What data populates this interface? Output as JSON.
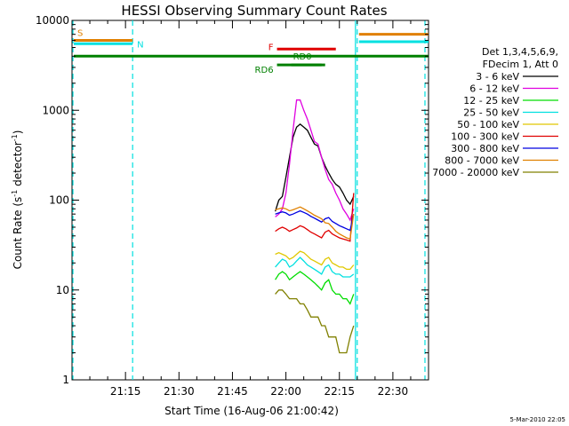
{
  "chart_data": {
    "type": "line",
    "title": "HESSI Observing Summary Count Rates",
    "xlabel": "Start Time (16-Aug-06 21:00:42)",
    "ylabel_main": "Count Rate (s",
    "ylabel_sup1": "-1",
    "ylabel_mid": " detector",
    "ylabel_sup2": "-1",
    "ylabel_end": ")",
    "yscale": "log",
    "ylim": [
      1,
      10000
    ],
    "xlim_minutes": [
      0,
      100
    ],
    "y_ticks": [
      {
        "value": 10000,
        "label": "10000"
      },
      {
        "value": 1000,
        "label": "1000"
      },
      {
        "value": 100,
        "label": "100"
      },
      {
        "value": 10,
        "label": "10"
      },
      {
        "value": 1,
        "label": "1"
      }
    ],
    "x_ticks": [
      {
        "minute": 15,
        "label": "21:15"
      },
      {
        "minute": 30,
        "label": "21:30"
      },
      {
        "minute": 45,
        "label": "21:45"
      },
      {
        "minute": 60,
        "label": "22:00"
      },
      {
        "minute": 75,
        "label": "22:15"
      },
      {
        "minute": 90,
        "label": "22:30"
      }
    ],
    "legend_header": [
      "Det 1,3,4,5,6,9,",
      "FDecim 1, Att 0"
    ],
    "legend_placement": "right",
    "series": [
      {
        "name": "3 - 6 keV",
        "color": "#000000",
        "x": [
          57,
          58,
          59,
          60,
          61,
          62,
          63,
          64,
          65,
          66,
          67,
          68,
          69,
          70,
          71,
          72,
          73,
          74,
          75,
          76,
          77,
          78,
          79
        ],
        "y": [
          75,
          100,
          110,
          180,
          300,
          500,
          650,
          700,
          650,
          600,
          500,
          420,
          400,
          300,
          240,
          200,
          170,
          150,
          140,
          120,
          100,
          90,
          110
        ]
      },
      {
        "name": "6 - 12 keV",
        "color": "#e000e0",
        "x": [
          57,
          58,
          59,
          60,
          61,
          62,
          63,
          64,
          65,
          66,
          67,
          68,
          69,
          70,
          71,
          72,
          73,
          74,
          75,
          76,
          77,
          78,
          79
        ],
        "y": [
          65,
          70,
          80,
          120,
          250,
          600,
          1300,
          1300,
          1000,
          800,
          600,
          450,
          420,
          300,
          220,
          170,
          150,
          120,
          100,
          80,
          70,
          60,
          80
        ]
      },
      {
        "name": "12 - 25 keV",
        "color": "#00dd00",
        "x": [
          57,
          58,
          59,
          60,
          61,
          62,
          63,
          64,
          65,
          66,
          67,
          68,
          69,
          70,
          71,
          72,
          73,
          74,
          75,
          76,
          77,
          78,
          79
        ],
        "y": [
          13,
          15,
          16,
          15,
          13,
          14,
          15,
          16,
          15,
          14,
          13,
          12,
          11,
          10,
          12,
          13,
          10,
          9,
          9,
          8,
          8,
          7,
          9
        ]
      },
      {
        "name": "25 - 50 keV",
        "color": "#00e0e0",
        "x": [
          57,
          58,
          59,
          60,
          61,
          62,
          63,
          64,
          65,
          66,
          67,
          68,
          69,
          70,
          71,
          72,
          73,
          74,
          75,
          76,
          77,
          78,
          79
        ],
        "y": [
          18,
          20,
          22,
          21,
          18,
          19,
          21,
          23,
          21,
          19,
          18,
          17,
          16,
          15,
          18,
          19,
          16,
          15,
          15,
          14,
          14,
          14,
          15
        ]
      },
      {
        "name": "50 - 100 keV",
        "color": "#e0c800",
        "x": [
          57,
          58,
          59,
          60,
          61,
          62,
          63,
          64,
          65,
          66,
          67,
          68,
          69,
          70,
          71,
          72,
          73,
          74,
          75,
          76,
          77,
          78,
          79
        ],
        "y": [
          25,
          26,
          25,
          24,
          22,
          23,
          25,
          27,
          26,
          24,
          22,
          21,
          20,
          19,
          22,
          23,
          20,
          19,
          18,
          18,
          17,
          17,
          19
        ]
      },
      {
        "name": "100 - 300 keV",
        "color": "#e00000",
        "x": [
          57,
          58,
          59,
          60,
          61,
          62,
          63,
          64,
          65,
          66,
          67,
          68,
          69,
          70,
          71,
          72,
          73,
          74,
          75,
          76,
          77,
          78,
          79
        ],
        "y": [
          45,
          48,
          50,
          48,
          45,
          47,
          49,
          52,
          50,
          47,
          44,
          42,
          40,
          38,
          44,
          46,
          42,
          40,
          38,
          37,
          36,
          35,
          120
        ]
      },
      {
        "name": "300 - 800 keV",
        "color": "#0000e0",
        "x": [
          57,
          58,
          59,
          60,
          61,
          62,
          63,
          64,
          65,
          66,
          67,
          68,
          69,
          70,
          71,
          72,
          73,
          74,
          75,
          76,
          77,
          78,
          79
        ],
        "y": [
          70,
          72,
          74,
          72,
          68,
          70,
          73,
          76,
          73,
          70,
          66,
          63,
          60,
          57,
          62,
          64,
          58,
          55,
          52,
          50,
          48,
          46,
          70
        ]
      },
      {
        "name": "800 - 7000 keV",
        "color": "#e08000",
        "x": [
          57,
          58,
          59,
          60,
          61,
          62,
          63,
          64,
          65,
          66,
          67,
          68,
          69,
          70,
          71,
          72,
          73,
          74,
          75,
          76,
          77,
          78,
          79
        ],
        "y": [
          78,
          80,
          82,
          80,
          76,
          78,
          81,
          84,
          80,
          76,
          72,
          68,
          65,
          62,
          56,
          55,
          50,
          45,
          42,
          40,
          38,
          37,
          70
        ]
      },
      {
        "name": "7000 - 20000 keV",
        "color": "#808000",
        "x": [
          57,
          58,
          59,
          60,
          61,
          62,
          63,
          64,
          65,
          66,
          67,
          68,
          69,
          70,
          71,
          72,
          73,
          74,
          75,
          76,
          77,
          78,
          79
        ],
        "y": [
          9,
          10,
          10,
          9,
          8,
          8,
          8,
          7,
          7,
          6,
          5,
          5,
          5,
          4,
          4,
          3,
          3,
          3,
          2,
          2,
          2,
          3,
          4
        ]
      }
    ],
    "flags": [
      {
        "label": "S",
        "color": "#e08000",
        "x0": 0,
        "x1": 17,
        "y": 6000,
        "label_at": "start"
      },
      {
        "label": "N",
        "color": "#00e0e0",
        "x0": 0,
        "x1": 17,
        "y": 5500,
        "label_at": "end"
      },
      {
        "label": "",
        "color": "#008000",
        "x0": 0,
        "x1": 100,
        "y": 4000,
        "label_at": ""
      },
      {
        "label": "F",
        "color": "#e00000",
        "x0": 57,
        "x1": 74,
        "y": 4800,
        "label_at": "start"
      },
      {
        "label": "RD0",
        "color": "#008000",
        "x0": 61,
        "x1": 71,
        "y": 3200,
        "label_at": "above"
      },
      {
        "label": "RD6",
        "color": "#008000",
        "x0": 57,
        "x1": 70,
        "y": 3200,
        "label_at": "left"
      },
      {
        "label": "",
        "color": "#e08000",
        "x0": 80,
        "x1": 100,
        "y": 7000,
        "label_at": ""
      },
      {
        "label": "",
        "color": "#00e0e0",
        "x0": 80,
        "x1": 100,
        "y": 5800,
        "label_at": ""
      }
    ],
    "vlines": [
      {
        "minute": 0,
        "color": "#00e0e0",
        "style": "dashed"
      },
      {
        "minute": 17,
        "color": "#00e0e0",
        "style": "dashed"
      },
      {
        "minute": 79.5,
        "color": "#00e0e0",
        "style": "solid"
      },
      {
        "minute": 80,
        "color": "#00e0e0",
        "style": "dashed"
      },
      {
        "minute": 99,
        "color": "#00e0e0",
        "style": "dashed"
      }
    ],
    "stamp": "5-Mar-2010 22:05",
    "grid": false
  }
}
